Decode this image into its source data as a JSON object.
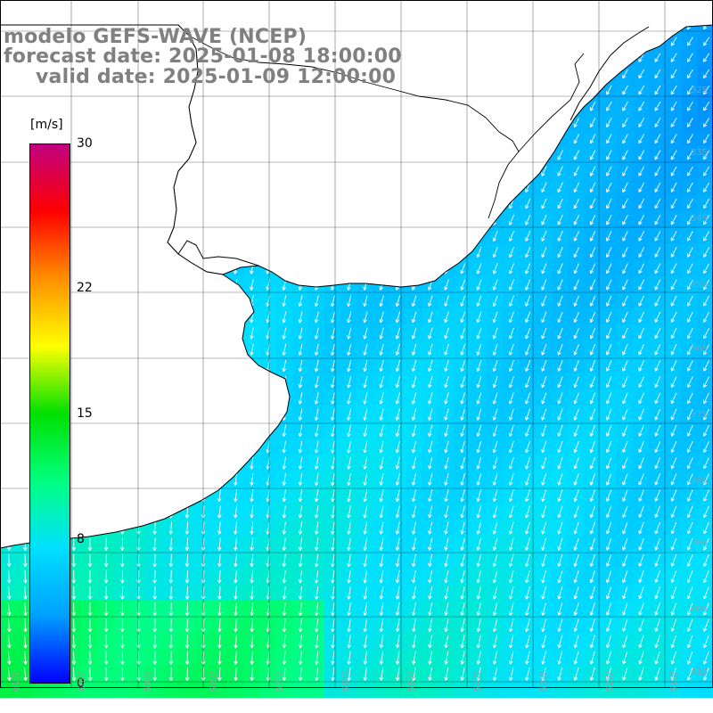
{
  "title": {
    "model": "modelo GEFS-WAVE (NCEP)",
    "forecast_date": "forecast date: 2025-01-08 18:00:00",
    "valid_date": "valid date: 2025-01-09 12:00:00"
  },
  "colorbar": {
    "unit": "[m/s]",
    "ticks": [
      "30",
      "22",
      "15",
      "8",
      "0"
    ],
    "tick_values": [
      30,
      22,
      15,
      8,
      0
    ],
    "range": [
      0,
      30
    ],
    "gradient_colors": [
      "#0000ff",
      "#00a0ff",
      "#00e0ff",
      "#00ff80",
      "#00e000",
      "#ffff00",
      "#ff9000",
      "#ff0000",
      "#c00080"
    ]
  },
  "colors": {
    "land": "#ffffff",
    "coastline": "#000000",
    "grid": "#000000",
    "wind_arrow": "#ffffff",
    "frame": "#000000"
  },
  "axes": {
    "lat_labels": [
      "32S",
      "33S",
      "34S",
      "35S",
      "36S",
      "37S",
      "38S",
      "39S",
      "40S",
      "41S"
    ],
    "lon_labels": [
      "61W",
      "60W",
      "59W",
      "58W",
      "57W",
      "56W",
      "55W",
      "54W",
      "53W",
      "52W",
      "51W"
    ],
    "lat_range_deg": [
      -41.5,
      -31
    ],
    "lon_range_deg": [
      -61.5,
      -50.5
    ]
  },
  "field": {
    "variable": "wind speed and direction",
    "arrow_direction": "from north-north-east",
    "speed_range_ms": [
      5,
      12
    ]
  }
}
